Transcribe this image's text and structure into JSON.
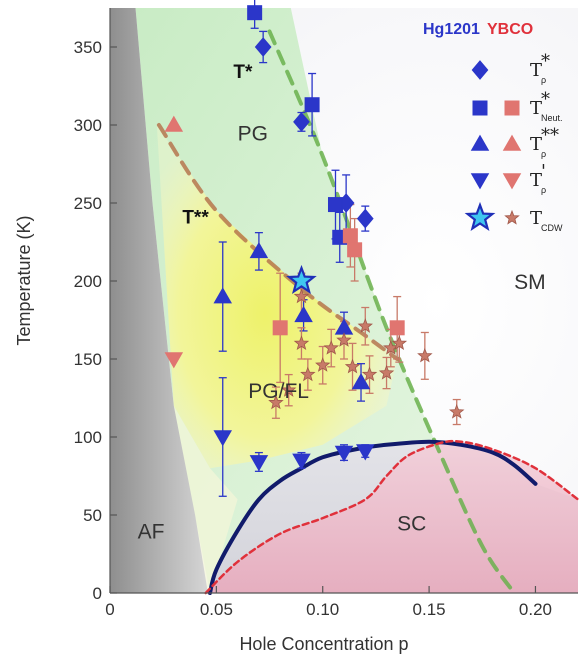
{
  "chart_data": {
    "type": "scatter",
    "title": "",
    "xlabel": "Hole Concentration p",
    "ylabel": "Temperature (K)",
    "xlim": [
      0,
      0.22
    ],
    "ylim": [
      0,
      375
    ],
    "xticks": [
      {
        "value": 0,
        "label": "0"
      },
      {
        "value": 0.05,
        "label": "0.05"
      },
      {
        "value": 0.1,
        "label": "0.10"
      },
      {
        "value": 0.15,
        "label": "0.15"
      },
      {
        "value": 0.2,
        "label": "0.20"
      }
    ],
    "yticks": [
      0,
      50,
      100,
      150,
      200,
      250,
      300,
      350
    ],
    "grid": false,
    "regions": [
      {
        "label": "AF",
        "x": 0.013,
        "y": 35
      },
      {
        "label": "PG",
        "x": 0.06,
        "y": 290
      },
      {
        "label": "PG/FL",
        "x": 0.065,
        "y": 125
      },
      {
        "label": "SM",
        "x": 0.19,
        "y": 195
      },
      {
        "label": "SC",
        "x": 0.135,
        "y": 40
      }
    ],
    "curve_labels": [
      {
        "label": "T*",
        "x": 0.058,
        "y": 330
      },
      {
        "label": "T**",
        "x": 0.034,
        "y": 237
      }
    ],
    "lines": [
      {
        "name": "T* line",
        "color": "#6ab04c",
        "dash": true,
        "points": [
          [
            0.075,
            360
          ],
          [
            0.1,
            280
          ],
          [
            0.13,
            170
          ],
          [
            0.155,
            90
          ],
          [
            0.175,
            30
          ],
          [
            0.19,
            0
          ]
        ]
      },
      {
        "name": "T** line",
        "color": "#b5754f",
        "dash": true,
        "points": [
          [
            0.023,
            300
          ],
          [
            0.05,
            245
          ],
          [
            0.09,
            195
          ],
          [
            0.12,
            165
          ],
          [
            0.135,
            150
          ]
        ]
      },
      {
        "name": "Tc Hg1201",
        "color": "#111b6b",
        "dash": false,
        "points": [
          [
            0.047,
            0
          ],
          [
            0.05,
            15
          ],
          [
            0.06,
            40
          ],
          [
            0.07,
            60
          ],
          [
            0.08,
            72
          ],
          [
            0.09,
            80
          ],
          [
            0.1,
            87
          ],
          [
            0.115,
            92
          ],
          [
            0.13,
            95
          ],
          [
            0.15,
            97
          ],
          [
            0.165,
            95
          ],
          [
            0.18,
            90
          ],
          [
            0.19,
            82
          ],
          [
            0.2,
            70
          ]
        ]
      },
      {
        "name": "Tc YBCO",
        "color": "#e0313b",
        "dash": true,
        "points": [
          [
            0.045,
            0
          ],
          [
            0.06,
            20
          ],
          [
            0.08,
            38
          ],
          [
            0.1,
            48
          ],
          [
            0.12,
            60
          ],
          [
            0.13,
            75
          ],
          [
            0.14,
            88
          ],
          [
            0.155,
            96
          ],
          [
            0.165,
            97
          ],
          [
            0.18,
            92
          ],
          [
            0.2,
            80
          ],
          [
            0.22,
            60
          ]
        ]
      }
    ],
    "series": [
      {
        "name": "Hg1201 T*",
        "marker": "diamond",
        "color": "#2b36c9",
        "points": [
          [
            0.072,
            350,
            10
          ],
          [
            0.09,
            302,
            6
          ],
          [
            0.111,
            250,
            18
          ],
          [
            0.12,
            240,
            8
          ]
        ]
      },
      {
        "name": "Hg1201 T* Neut.",
        "marker": "square",
        "color": "#2b36c9",
        "points": [
          [
            0.068,
            372,
            10
          ],
          [
            0.095,
            313,
            20
          ],
          [
            0.106,
            249,
            22
          ],
          [
            0.108,
            228,
            16
          ]
        ]
      },
      {
        "name": "Hg1201 T**",
        "marker": "triangle-up",
        "color": "#2b36c9",
        "points": [
          [
            0.053,
            190,
            35
          ],
          [
            0.07,
            219,
            12
          ],
          [
            0.091,
            178,
            10
          ],
          [
            0.11,
            170,
            10
          ],
          [
            0.118,
            135,
            12
          ]
        ]
      },
      {
        "name": "Hg1201 T'",
        "marker": "triangle-down",
        "color": "#2b36c9",
        "points": [
          [
            0.053,
            100,
            38
          ],
          [
            0.07,
            84,
            6
          ],
          [
            0.09,
            85,
            5
          ],
          [
            0.11,
            90,
            5
          ],
          [
            0.12,
            91,
            4
          ]
        ]
      },
      {
        "name": "Hg1201 T CDW",
        "marker": "star-big",
        "color": "#3fc6f0",
        "points": [
          [
            0.09,
            200,
            0
          ]
        ]
      },
      {
        "name": "YBCO T* Neut.",
        "marker": "square",
        "color": "#e07570",
        "points": [
          [
            0.08,
            170,
            35
          ],
          [
            0.113,
            229,
            20
          ],
          [
            0.115,
            220,
            20
          ],
          [
            0.135,
            170,
            20
          ]
        ]
      },
      {
        "name": "YBCO T**",
        "marker": "triangle-up",
        "color": "#e07570",
        "points": [
          [
            0.03,
            300,
            0
          ]
        ]
      },
      {
        "name": "YBCO T'",
        "marker": "triangle-down",
        "color": "#e07570",
        "points": [
          [
            0.03,
            150,
            0
          ]
        ]
      },
      {
        "name": "YBCO T CDW",
        "marker": "star",
        "color": "#c87a68",
        "points": [
          [
            0.09,
            190,
            15
          ],
          [
            0.09,
            160,
            10
          ],
          [
            0.104,
            157,
            12
          ],
          [
            0.11,
            162,
            12
          ],
          [
            0.114,
            145,
            15
          ],
          [
            0.12,
            171,
            12
          ],
          [
            0.122,
            140,
            12
          ],
          [
            0.13,
            141,
            10
          ],
          [
            0.132,
            157,
            12
          ],
          [
            0.084,
            130,
            10
          ],
          [
            0.078,
            122,
            10
          ],
          [
            0.1,
            146,
            12
          ],
          [
            0.136,
            160,
            12
          ],
          [
            0.148,
            152,
            15
          ],
          [
            0.163,
            116,
            8
          ],
          [
            0.093,
            140,
            10
          ]
        ]
      }
    ],
    "legend": {
      "placement": "top-right",
      "headers": [
        {
          "label": "Hg1201",
          "color": "#2b36c9"
        },
        {
          "label": "YBCO",
          "color": "#e0313b"
        }
      ],
      "entries": [
        {
          "symbol": "T",
          "sup": "*",
          "sub": "ρ",
          "hg_marker": "diamond",
          "ybco_marker": ""
        },
        {
          "symbol": "T",
          "sup": "*",
          "sub": "Neut.",
          "hg_marker": "square",
          "ybco_marker": "square"
        },
        {
          "symbol": "T",
          "sup": "**",
          "sub": "ρ",
          "hg_marker": "triangle-up",
          "ybco_marker": "triangle-up"
        },
        {
          "symbol": "T",
          "sup": "'",
          "sub": "ρ",
          "hg_marker": "triangle-down",
          "ybco_marker": "triangle-down"
        },
        {
          "symbol": "T",
          "sup": "",
          "sub": "CDW",
          "hg_marker": "star-big",
          "ybco_marker": "star"
        }
      ]
    },
    "colors": {
      "hg1201": "#2b36c9",
      "ybco": "#e07570",
      "cdw_hg": "#3fc6f0",
      "tstar_line": "#6ab04c",
      "tstarstar_line": "#b5754f",
      "tc_hg": "#111b6b",
      "tc_ybco": "#e0313b"
    }
  }
}
